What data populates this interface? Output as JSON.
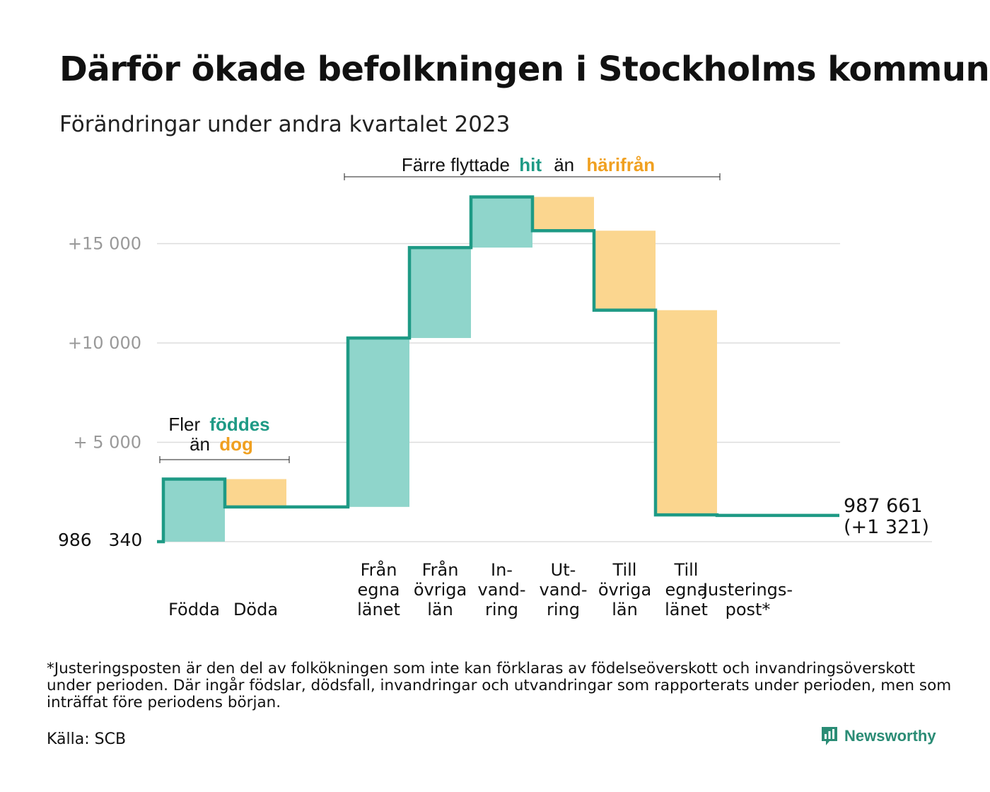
{
  "title": "Därför ökade befolkningen i Stockholms kommun",
  "subtitle": "Förändringar under andra kvartalet 2023",
  "colors": {
    "increase": "#8fd5cb",
    "decrease": "#fbd68f",
    "line": "#1e9a85",
    "accent_teal": "#1e9a85",
    "accent_orange": "#f0a020",
    "grid": "#dddddd",
    "axis_text": "#999999"
  },
  "annotations": {
    "births": {
      "line1_prefix": "Fler",
      "line1_highlight": "föddes",
      "line2_prefix": "än",
      "line2_highlight": "dog"
    },
    "moves": {
      "prefix": "Färre flyttade",
      "highlight1": "hit",
      "middle": "än",
      "highlight2": "härifrån"
    }
  },
  "chart_data": {
    "type": "waterfall",
    "start_label": "986   340",
    "start_value": 986340,
    "end_label_line1": "987 661",
    "end_label_line2": "(+1 321)",
    "end_value": 987661,
    "y_ticks": [
      {
        "value": 5000,
        "label": "+  5  000"
      },
      {
        "value": 10000,
        "label": "+10    000"
      },
      {
        "value": 15000,
        "label": "+15    000"
      }
    ],
    "ylim": [
      0,
      17500
    ],
    "steps": [
      {
        "label": [
          "Födda"
        ],
        "change": 3150,
        "kind": "increase"
      },
      {
        "label": [
          "Döda"
        ],
        "change": -1400,
        "kind": "decrease"
      },
      {
        "label": [
          ""
        ],
        "change": 0,
        "kind": "spacer"
      },
      {
        "label": [
          "Från",
          "egna",
          "länet"
        ],
        "change": 8500,
        "kind": "increase"
      },
      {
        "label": [
          "Från",
          "övriga",
          "län"
        ],
        "change": 4550,
        "kind": "increase"
      },
      {
        "label": [
          "In-",
          "vand-",
          "ring"
        ],
        "change": 2550,
        "kind": "increase"
      },
      {
        "label": [
          "Ut-",
          "vand-",
          "ring"
        ],
        "change": -1700,
        "kind": "decrease"
      },
      {
        "label": [
          "Till",
          "övriga",
          "län"
        ],
        "change": -4000,
        "kind": "decrease"
      },
      {
        "label": [
          "Till",
          "egna",
          "länet"
        ],
        "change": -10300,
        "kind": "decrease"
      },
      {
        "label": [
          "Justerings-",
          "post*"
        ],
        "change": -29,
        "kind": "adjust"
      }
    ]
  },
  "footnote": "*Justeringsposten är den del av folkökningen som inte kan förklaras av födelseöverskott och invandringsöverskott under perioden. Där ingår födslar, dödsfall, invandringar och utvandringar som rapporterats under perioden, men som inträffat före periodens början.",
  "source": "Källa: SCB",
  "logo_text": "Newsworthy"
}
